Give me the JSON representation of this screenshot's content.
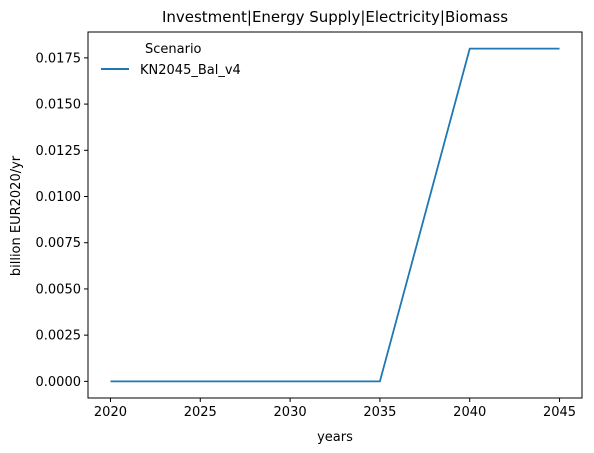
{
  "chart_data": {
    "type": "line",
    "title": "Investment|Energy Supply|Electricity|Biomass",
    "xlabel": "years",
    "ylabel": "billion EUR2020/yr",
    "x": [
      2020,
      2025,
      2030,
      2035,
      2040,
      2045
    ],
    "series": [
      {
        "name": "KN2045_Bal_v4",
        "color": "#1f77b4",
        "values": [
          0,
          0,
          0,
          0,
          0.018,
          0.018
        ]
      }
    ],
    "xlim": [
      2018.75,
      2046.25
    ],
    "ylim": [
      -0.0009,
      0.0189
    ],
    "xticks": [
      "2020",
      "2025",
      "2030",
      "2035",
      "2040",
      "2045"
    ],
    "yticks": [
      "0.0000",
      "0.0025",
      "0.0050",
      "0.0075",
      "0.0100",
      "0.0125",
      "0.0150",
      "0.0175"
    ],
    "legend": {
      "title": "Scenario",
      "position": "upper-left"
    },
    "grid": false
  }
}
